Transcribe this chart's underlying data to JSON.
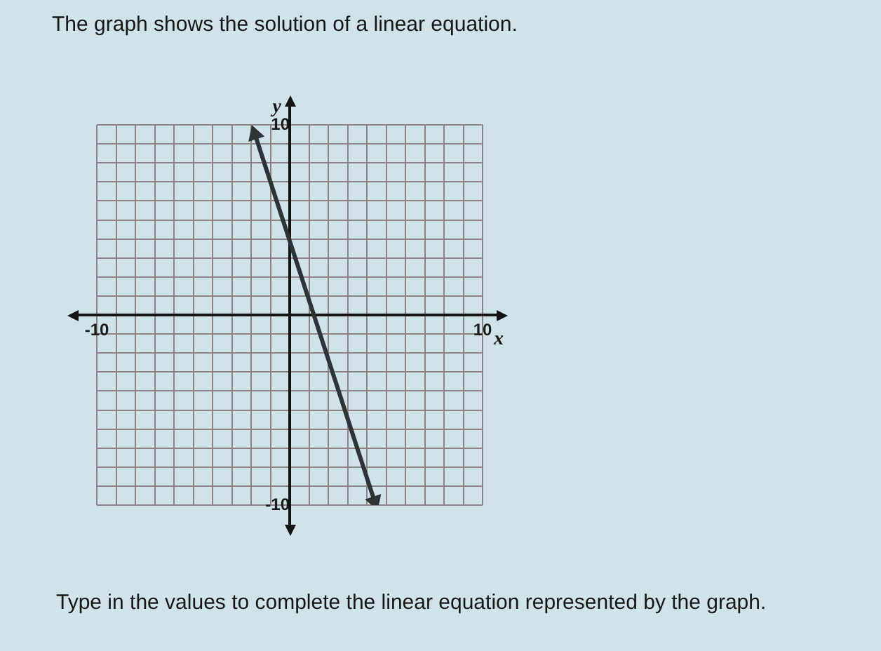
{
  "chart_data": {
    "type": "line",
    "title": "The graph shows the solution of a linear equation.",
    "annotations": [
      "Type in the values to complete the linear equation represented by the graph."
    ],
    "xlabel": "x",
    "ylabel": "y",
    "xlim": [
      -10,
      10
    ],
    "ylim": [
      -10,
      10
    ],
    "xticks": [
      -10,
      {
        "value": -9,
        "label": null
      },
      {
        "value": -8,
        "label": null
      },
      {
        "value": -7,
        "label": null
      },
      {
        "value": -6,
        "label": null
      },
      {
        "value": -5,
        "label": null
      },
      {
        "value": -4,
        "label": null
      },
      {
        "value": -3,
        "label": null
      },
      {
        "value": -2,
        "label": null
      },
      {
        "value": -1,
        "label": null
      },
      {
        "value": 0,
        "label": null
      },
      {
        "value": 1,
        "label": null
      },
      {
        "value": 2,
        "label": null
      },
      {
        "value": 3,
        "label": null
      },
      {
        "value": 4,
        "label": null
      },
      {
        "value": 5,
        "label": null
      },
      {
        "value": 6,
        "label": null
      },
      {
        "value": 7,
        "label": null
      },
      {
        "value": 8,
        "label": null
      },
      {
        "value": 9,
        "label": null
      },
      10
    ],
    "yticks": [
      -10,
      {
        "value": -9,
        "label": null
      },
      {
        "value": -8,
        "label": null
      },
      {
        "value": -7,
        "label": null
      },
      {
        "value": -6,
        "label": null
      },
      {
        "value": -5,
        "label": null
      },
      {
        "value": -4,
        "label": null
      },
      {
        "value": -3,
        "label": null
      },
      {
        "value": -2,
        "label": null
      },
      {
        "value": -1,
        "label": null
      },
      {
        "value": 0,
        "label": null
      },
      {
        "value": 1,
        "label": null
      },
      {
        "value": 2,
        "label": null
      },
      {
        "value": 3,
        "label": null
      },
      {
        "value": 4,
        "label": null
      },
      {
        "value": 5,
        "label": null
      },
      {
        "value": 6,
        "label": null
      },
      {
        "value": 7,
        "label": null
      },
      {
        "value": 8,
        "label": null
      },
      {
        "value": 9,
        "label": null
      },
      10
    ],
    "grid": true,
    "marker": "triangle",
    "x": [
      -1.8,
      4.4
    ],
    "values": [
      9.5,
      -9.8
    ],
    "color": "#2e3338"
  }
}
